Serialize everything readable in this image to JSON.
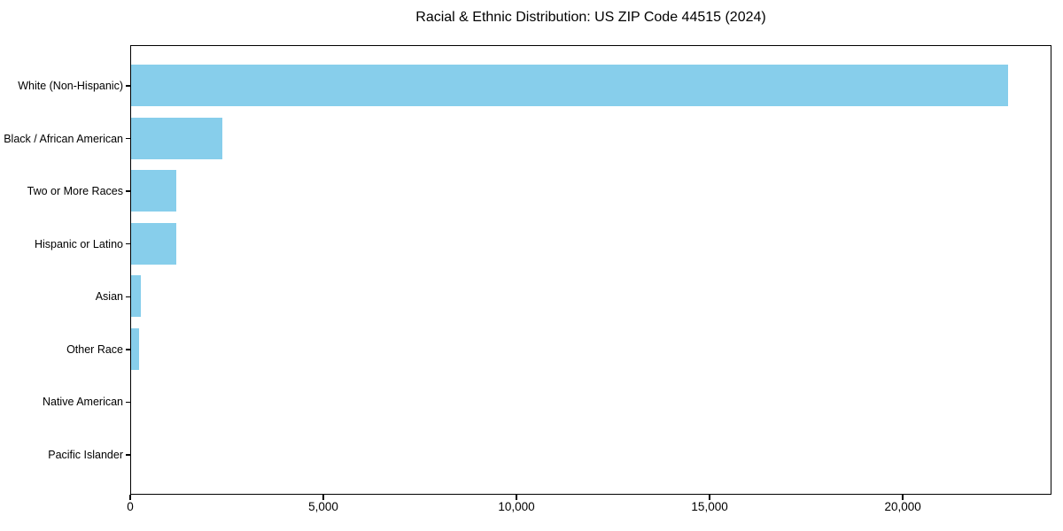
{
  "chart_data": {
    "type": "bar",
    "orientation": "horizontal",
    "title": "Racial & Ethnic Distribution: US ZIP Code 44515 (2024)",
    "categories": [
      "White (Non-Hispanic)",
      "Black / African American",
      "Two or More Races",
      "Hispanic or Latino",
      "Asian",
      "Other Race",
      "Native American",
      "Pacific Islander"
    ],
    "values": [
      22700,
      2360,
      1160,
      1180,
      255,
      195,
      0,
      0
    ],
    "xlabel": "",
    "ylabel": "",
    "xlim": [
      0,
      23850
    ],
    "xticks": [
      0,
      5000,
      10000,
      15000,
      20000
    ],
    "xtick_labels": [
      "0",
      "5,000",
      "10,000",
      "15,000",
      "20,000"
    ],
    "bar_color": "#87CEEB",
    "spine_color": "#000000",
    "text_color": "#000000",
    "background_color": "#ffffff",
    "grid": false,
    "legend": null
  }
}
